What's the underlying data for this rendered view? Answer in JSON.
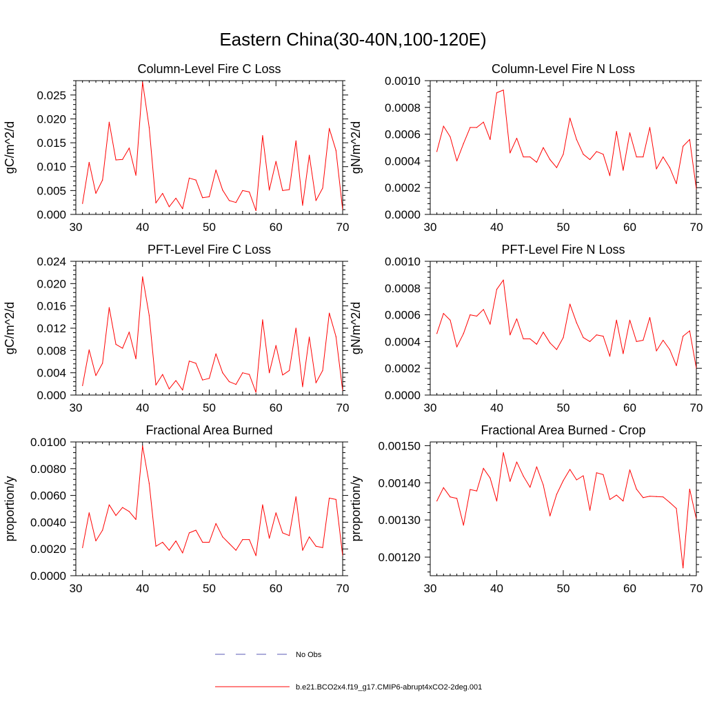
{
  "page_title": "Eastern China(30-40N,100-120E)",
  "series_color": "#ff0000",
  "legend": [
    {
      "label": "No Obs",
      "color": "#5a5ab4",
      "style": "dashed"
    },
    {
      "label": "b.e21.BCO2x4.f19_g17.CMIP6-abrupt4xCO2-2deg.001",
      "color": "#ff0000",
      "style": "solid"
    }
  ],
  "chart_data": [
    {
      "type": "line",
      "title": "Column-Level Fire C Loss",
      "xlabel": "",
      "ylabel": "gC/m^2/d",
      "xlim": [
        30,
        70
      ],
      "ylim": [
        0,
        0.028
      ],
      "xticks": [
        30,
        40,
        50,
        60,
        70
      ],
      "xtick_labels": [
        "30",
        "40",
        "50",
        "60",
        "70"
      ],
      "yticks": [
        0,
        0.005,
        0.01,
        0.015,
        0.02,
        0.025
      ],
      "ytick_labels": [
        "0.000",
        "0.005",
        "0.010",
        "0.015",
        "0.020",
        "0.025"
      ],
      "x": [
        31,
        32,
        33,
        34,
        35,
        36,
        37,
        38,
        39,
        40,
        41,
        42,
        43,
        44,
        45,
        46,
        47,
        48,
        49,
        50,
        51,
        52,
        53,
        54,
        55,
        56,
        57,
        58,
        59,
        60,
        61,
        62,
        63,
        64,
        65,
        66,
        67,
        68,
        69,
        70
      ],
      "values": [
        0.0023,
        0.0109,
        0.0044,
        0.0072,
        0.0193,
        0.0114,
        0.0115,
        0.0139,
        0.0082,
        0.0277,
        0.0182,
        0.0024,
        0.0044,
        0.0016,
        0.0034,
        0.0012,
        0.0076,
        0.0072,
        0.0035,
        0.0037,
        0.0093,
        0.0051,
        0.0029,
        0.0025,
        0.005,
        0.0047,
        0.0008,
        0.0165,
        0.0051,
        0.0111,
        0.005,
        0.0052,
        0.0154,
        0.0019,
        0.0124,
        0.0029,
        0.0055,
        0.018,
        0.0134,
        0.001
      ]
    },
    {
      "type": "line",
      "title": "Column-Level Fire N Loss",
      "xlabel": "",
      "ylabel": "gN/m^2/d",
      "xlim": [
        30,
        70
      ],
      "ylim": [
        0,
        0.001
      ],
      "xticks": [
        30,
        40,
        50,
        60,
        70
      ],
      "xtick_labels": [
        "30",
        "40",
        "50",
        "60",
        "70"
      ],
      "yticks": [
        0,
        0.0002,
        0.0004,
        0.0006,
        0.0008,
        0.001
      ],
      "ytick_labels": [
        "0.0000",
        "0.0002",
        "0.0004",
        "0.0006",
        "0.0008",
        "0.0010"
      ],
      "x": [
        31,
        32,
        33,
        34,
        35,
        36,
        37,
        38,
        39,
        40,
        41,
        42,
        43,
        44,
        45,
        46,
        47,
        48,
        49,
        50,
        51,
        52,
        53,
        54,
        55,
        56,
        57,
        58,
        59,
        60,
        61,
        62,
        63,
        64,
        65,
        66,
        67,
        68,
        69,
        70
      ],
      "values": [
        0.00047,
        0.00066,
        0.00058,
        0.0004,
        0.00053,
        0.00065,
        0.00065,
        0.00069,
        0.00056,
        0.00091,
        0.00093,
        0.00046,
        0.00057,
        0.00043,
        0.00043,
        0.00039,
        0.0005,
        0.00041,
        0.00035,
        0.00045,
        0.00072,
        0.00056,
        0.00045,
        0.00041,
        0.00047,
        0.00045,
        0.00029,
        0.00062,
        0.00033,
        0.00061,
        0.00043,
        0.00043,
        0.00065,
        0.00034,
        0.00043,
        0.00035,
        0.00023,
        0.00051,
        0.00056,
        0.00019
      ]
    },
    {
      "type": "line",
      "title": "PFT-Level Fire C Loss",
      "xlabel": "",
      "ylabel": "gC/m^2/d",
      "xlim": [
        30,
        70
      ],
      "ylim": [
        0,
        0.024
      ],
      "xticks": [
        30,
        40,
        50,
        60,
        70
      ],
      "xtick_labels": [
        "30",
        "40",
        "50",
        "60",
        "70"
      ],
      "yticks": [
        0,
        0.004,
        0.008,
        0.012,
        0.016,
        0.02,
        0.024
      ],
      "ytick_labels": [
        "0.000",
        "0.004",
        "0.008",
        "0.012",
        "0.016",
        "0.020",
        "0.024"
      ],
      "x": [
        31,
        32,
        33,
        34,
        35,
        36,
        37,
        38,
        39,
        40,
        41,
        42,
        43,
        44,
        45,
        46,
        47,
        48,
        49,
        50,
        51,
        52,
        53,
        54,
        55,
        56,
        57,
        58,
        59,
        60,
        61,
        62,
        63,
        64,
        65,
        66,
        67,
        68,
        69,
        70
      ],
      "values": [
        0.0017,
        0.0081,
        0.0035,
        0.0057,
        0.0157,
        0.0091,
        0.0084,
        0.0113,
        0.0065,
        0.0212,
        0.0143,
        0.0018,
        0.0037,
        0.0011,
        0.0026,
        0.0009,
        0.0061,
        0.0057,
        0.0027,
        0.003,
        0.0074,
        0.004,
        0.0024,
        0.0019,
        0.004,
        0.0037,
        0.0005,
        0.0135,
        0.004,
        0.0089,
        0.0036,
        0.0044,
        0.012,
        0.0015,
        0.0104,
        0.0022,
        0.0044,
        0.0147,
        0.0105,
        0.0008
      ]
    },
    {
      "type": "line",
      "title": "PFT-Level Fire N Loss",
      "xlabel": "",
      "ylabel": "gN/m^2/d",
      "xlim": [
        30,
        70
      ],
      "ylim": [
        0,
        0.001
      ],
      "xticks": [
        30,
        40,
        50,
        60,
        70
      ],
      "xtick_labels": [
        "30",
        "40",
        "50",
        "60",
        "70"
      ],
      "yticks": [
        0,
        0.0002,
        0.0004,
        0.0006,
        0.0008,
        0.001
      ],
      "ytick_labels": [
        "0.0000",
        "0.0002",
        "0.0004",
        "0.0006",
        "0.0008",
        "0.0010"
      ],
      "x": [
        31,
        32,
        33,
        34,
        35,
        36,
        37,
        38,
        39,
        40,
        41,
        42,
        43,
        44,
        45,
        46,
        47,
        48,
        49,
        50,
        51,
        52,
        53,
        54,
        55,
        56,
        57,
        58,
        59,
        60,
        61,
        62,
        63,
        64,
        65,
        66,
        67,
        68,
        69,
        70
      ],
      "values": [
        0.00046,
        0.00061,
        0.00056,
        0.00036,
        0.00046,
        0.0006,
        0.00059,
        0.00064,
        0.00053,
        0.00079,
        0.00086,
        0.00045,
        0.00057,
        0.00042,
        0.00042,
        0.00038,
        0.00047,
        0.00039,
        0.00034,
        0.00043,
        0.00068,
        0.00054,
        0.00043,
        0.0004,
        0.00045,
        0.00044,
        0.00029,
        0.00056,
        0.00031,
        0.00056,
        0.0004,
        0.00041,
        0.00058,
        0.00033,
        0.00041,
        0.00034,
        0.00022,
        0.00044,
        0.00048,
        0.0002
      ]
    },
    {
      "type": "line",
      "title": "Fractional Area Burned",
      "xlabel": "",
      "ylabel": "proportion/y",
      "xlim": [
        30,
        70
      ],
      "ylim": [
        0,
        0.01
      ],
      "xticks": [
        30,
        40,
        50,
        60,
        70
      ],
      "xtick_labels": [
        "30",
        "40",
        "50",
        "60",
        "70"
      ],
      "yticks": [
        0,
        0.002,
        0.004,
        0.006,
        0.008,
        0.01
      ],
      "ytick_labels": [
        "0.0000",
        "0.0020",
        "0.0040",
        "0.0060",
        "0.0080",
        "0.0100"
      ],
      "x": [
        31,
        32,
        33,
        34,
        35,
        36,
        37,
        38,
        39,
        40,
        41,
        42,
        43,
        44,
        45,
        46,
        47,
        48,
        49,
        50,
        51,
        52,
        53,
        54,
        55,
        56,
        57,
        58,
        59,
        60,
        61,
        62,
        63,
        64,
        65,
        66,
        67,
        68,
        69,
        70
      ],
      "values": [
        0.0021,
        0.0047,
        0.0026,
        0.0034,
        0.0053,
        0.0045,
        0.0051,
        0.0048,
        0.0042,
        0.0097,
        0.0069,
        0.0022,
        0.0025,
        0.0019,
        0.0026,
        0.0017,
        0.0032,
        0.0034,
        0.0025,
        0.0025,
        0.0039,
        0.0029,
        0.0024,
        0.0019,
        0.0027,
        0.0027,
        0.0015,
        0.0053,
        0.0028,
        0.0047,
        0.0032,
        0.003,
        0.0059,
        0.0019,
        0.0029,
        0.0022,
        0.0021,
        0.0058,
        0.0057,
        0.0015
      ]
    },
    {
      "type": "line",
      "title": "Fractional Area Burned - Crop",
      "xlabel": "",
      "ylabel": "proportion/y",
      "xlim": [
        30,
        70
      ],
      "ylim": [
        0.00115,
        0.00151
      ],
      "xticks": [
        30,
        40,
        50,
        60,
        70
      ],
      "xtick_labels": [
        "30",
        "40",
        "50",
        "60",
        "70"
      ],
      "yticks": [
        0.0012,
        0.0013,
        0.0014,
        0.0015
      ],
      "ytick_labels": [
        "0.00120",
        "0.00130",
        "0.00140",
        "0.00150"
      ],
      "x": [
        31,
        32,
        33,
        34,
        35,
        36,
        37,
        38,
        39,
        40,
        41,
        42,
        43,
        44,
        45,
        46,
        47,
        48,
        49,
        50,
        51,
        52,
        53,
        54,
        55,
        56,
        57,
        58,
        59,
        60,
        61,
        62,
        63,
        64,
        65,
        66,
        67,
        68,
        69,
        70
      ],
      "values": [
        0.001351,
        0.001387,
        0.001362,
        0.001358,
        0.001286,
        0.001382,
        0.001378,
        0.001439,
        0.001413,
        0.001351,
        0.001481,
        0.001404,
        0.001456,
        0.001418,
        0.001388,
        0.001443,
        0.001394,
        0.001311,
        0.001369,
        0.001406,
        0.001436,
        0.001408,
        0.001419,
        0.001326,
        0.001427,
        0.001422,
        0.001355,
        0.001367,
        0.001351,
        0.001435,
        0.001383,
        0.00136,
        0.001364,
        0.001363,
        0.001362,
        0.001347,
        0.001331,
        0.001171,
        0.001383,
        0.001303
      ]
    }
  ]
}
